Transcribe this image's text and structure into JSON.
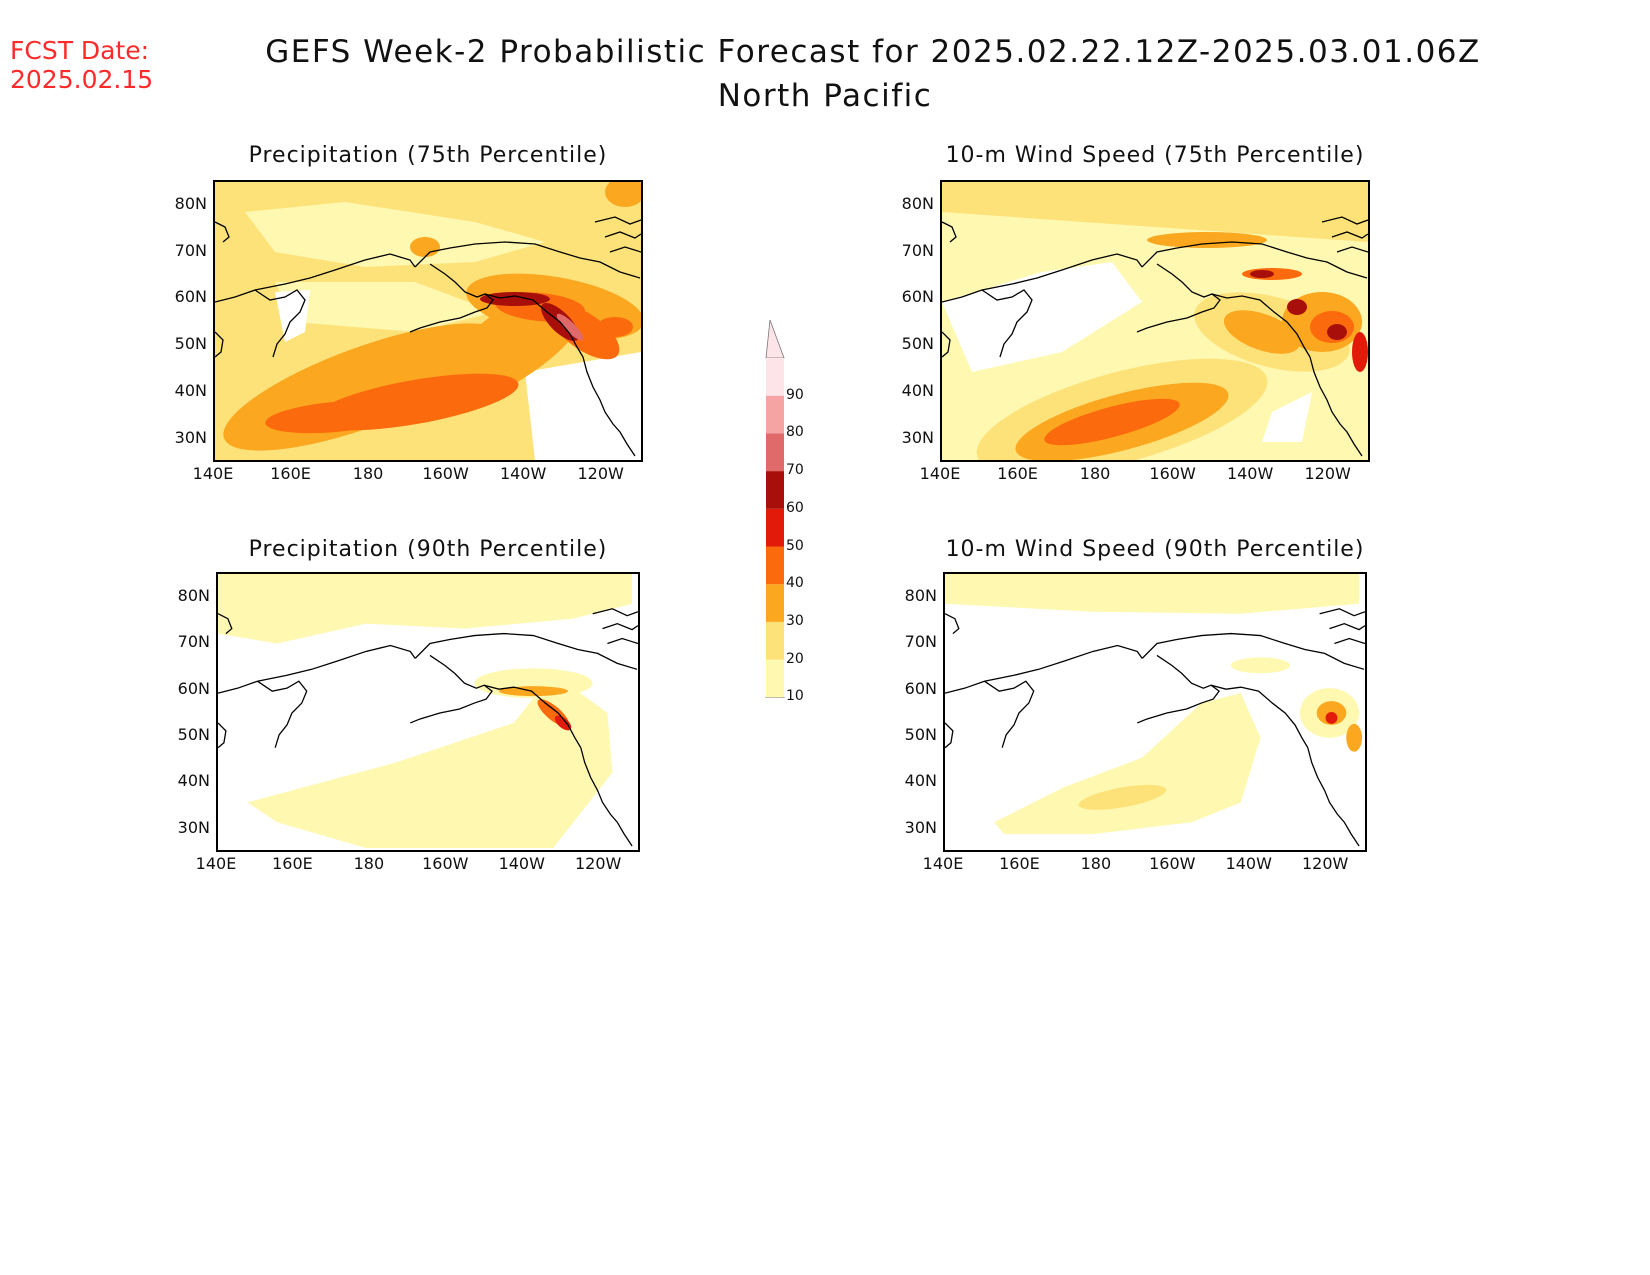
{
  "header": {
    "fcst_label": "FCST Date:",
    "fcst_date": "2025.02.15",
    "title": "GEFS Week-2 Probabilistic Forecast for 2025.02.22.12Z-2025.03.01.06Z",
    "subtitle": "North Pacific"
  },
  "panels": [
    {
      "title": "Precipitation (75th Percentile)"
    },
    {
      "title": "10-m Wind Speed (75th Percentile)"
    },
    {
      "title": "Precipitation (90th Percentile)"
    },
    {
      "title": "10-m Wind Speed (90th Percentile)"
    }
  ],
  "axes": {
    "lat_labels": [
      "80N",
      "70N",
      "60N",
      "50N",
      "40N",
      "30N"
    ],
    "lon_labels": [
      "140E",
      "160E",
      "180",
      "160W",
      "140W",
      "120W"
    ]
  },
  "colorbar": {
    "levels": [
      "10",
      "20",
      "30",
      "40",
      "50",
      "60",
      "70",
      "80",
      "90"
    ],
    "colors": [
      "#fff8b0",
      "#fde27a",
      "#fba71f",
      "#fb6a0c",
      "#e21a0a",
      "#a80f0b",
      "#e06a6a",
      "#f5a3a3",
      "#fde4e8"
    ]
  }
}
